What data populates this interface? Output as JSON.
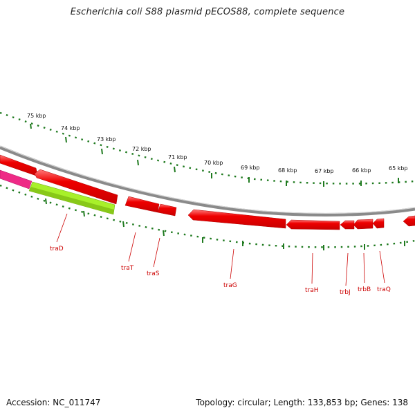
{
  "title": "Escherichia coli S88 plasmid pECOS88, complete sequence",
  "footer": {
    "accession": "Accession: NC_011747",
    "summary": "Topology: circular; Length: 133,853 bp; Genes: 138"
  },
  "scale_labels": [
    "75 kbp",
    "74 kbp",
    "73 kbp",
    "72 kbp",
    "71 kbp",
    "70 kbp",
    "69 kbp",
    "68 kbp",
    "67 kbp",
    "66 kbp",
    "65 kbp"
  ],
  "gene_labels": [
    "traD",
    "traT",
    "traS",
    "traG",
    "traH",
    "trbJ",
    "trbB",
    "traQ"
  ],
  "colors": {
    "backbone": "#8a8a8a",
    "gene": "#ee0000",
    "gene_highlight": "#ff6b6b",
    "gene_magenta": "#ee2a86",
    "gene_lime": "#a8f02a",
    "tick": "#1f7a1f",
    "gene_label": "#cc0000"
  }
}
